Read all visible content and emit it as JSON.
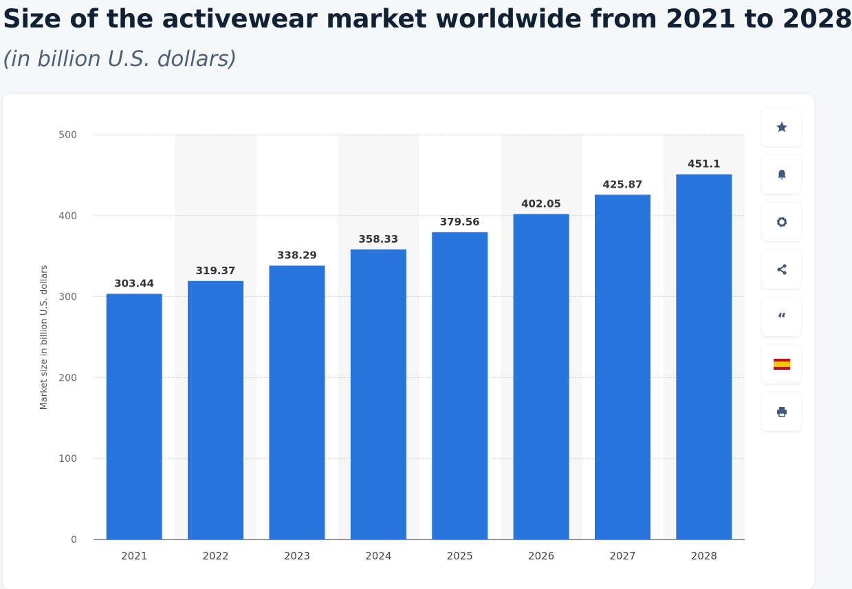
{
  "header": {
    "title": "Size of the activewear market worldwide from 2021 to 2028",
    "subtitle": "(in billion U.S. dollars)"
  },
  "toolbar": {
    "icons": [
      "star-icon",
      "bell-icon",
      "gear-icon",
      "share-icon",
      "quote-icon",
      "spain-flag-icon",
      "print-icon"
    ]
  },
  "colors": {
    "bar": "#2876dd",
    "band": "#f7f7f7",
    "grid": "#c8c8c8"
  },
  "chart_data": {
    "type": "bar",
    "categories": [
      "2021",
      "2022",
      "2023",
      "2024",
      "2025",
      "2026",
      "2027",
      "2028"
    ],
    "values": [
      303.44,
      319.37,
      338.29,
      358.33,
      379.56,
      402.05,
      425.87,
      451.1
    ],
    "value_labels": [
      "303.44",
      "319.37",
      "338.29",
      "358.33",
      "379.56",
      "402.05",
      "425.87",
      "451.1"
    ],
    "ylabel": "Market size in billion U.S. dollars",
    "xlabel": "",
    "ylim": [
      0,
      500
    ],
    "yticks": [
      "0",
      "100",
      "200",
      "300",
      "400",
      "500"
    ],
    "grid": true
  }
}
